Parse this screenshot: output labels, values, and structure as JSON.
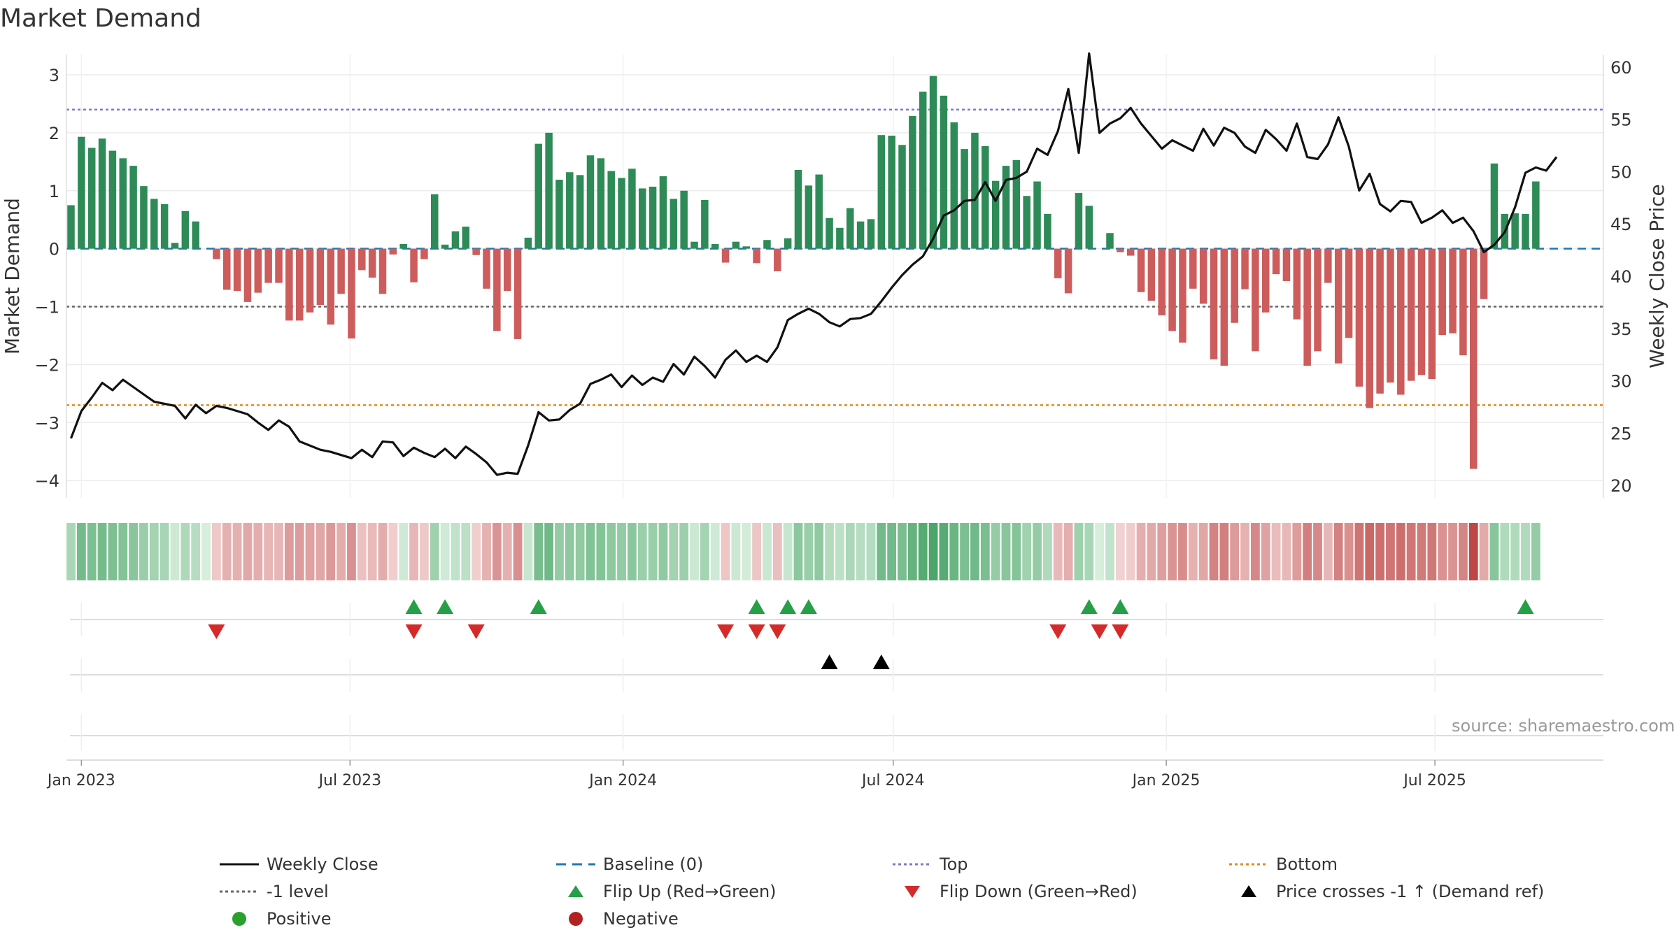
{
  "chart_data": {
    "type": "bar",
    "title": "Market Demand",
    "ylabel": "Market Demand",
    "y2label": "Weekly Close Price",
    "ylim": [
      -4.3,
      3.35
    ],
    "y2lim": [
      18.8,
      61.2
    ],
    "yticks": [
      3,
      2,
      1,
      0,
      -1,
      -2,
      -3,
      -4
    ],
    "yticklabels": [
      "3",
      "2",
      "1",
      "0",
      "−1",
      "−2",
      "−3",
      "−4"
    ],
    "y2ticks": [
      60,
      55,
      50,
      45,
      40,
      35,
      30,
      25,
      20
    ],
    "y2ticklabels": [
      "60",
      "55",
      "50",
      "45",
      "40",
      "35",
      "30",
      "25",
      "20"
    ],
    "x_start": "2022-12-25",
    "week_days": 7,
    "xticks": [
      {
        "label": "Jan 2023",
        "day": 7
      },
      {
        "label": "Jul 2023",
        "day": 188
      },
      {
        "label": "Jan 2024",
        "day": 372
      },
      {
        "label": "Jul 2024",
        "day": 554
      },
      {
        "label": "Jan 2025",
        "day": 738
      },
      {
        "label": "Jul 2025",
        "day": 919
      }
    ],
    "levels": {
      "top": 2.4,
      "minus_one": -1,
      "bottom": -2.7,
      "baseline": 0
    },
    "series": [
      {
        "name": "Market Demand",
        "values": [
          0.75,
          1.93,
          1.74,
          1.9,
          1.69,
          1.56,
          1.43,
          1.08,
          0.86,
          0.77,
          0.1,
          0.65,
          0.47,
          0.0,
          -0.18,
          -0.71,
          -0.73,
          -0.92,
          -0.76,
          -0.59,
          -0.59,
          -1.24,
          -1.24,
          -1.1,
          -0.97,
          -1.31,
          -0.78,
          -1.55,
          -0.37,
          -0.5,
          -0.78,
          -0.1,
          0.08,
          -0.58,
          -0.18,
          0.94,
          0.07,
          0.3,
          0.38,
          -0.11,
          -0.69,
          -1.42,
          -0.73,
          -1.56,
          0.19,
          1.81,
          2.0,
          1.19,
          1.32,
          1.27,
          1.61,
          1.56,
          1.34,
          1.22,
          1.38,
          1.04,
          1.07,
          1.25,
          0.86,
          1.0,
          0.12,
          0.84,
          0.08,
          -0.24,
          0.12,
          0.04,
          -0.25,
          0.15,
          -0.39,
          0.18,
          1.36,
          1.09,
          1.28,
          0.53,
          0.36,
          0.7,
          0.47,
          0.51,
          1.96,
          1.95,
          1.79,
          2.29,
          2.71,
          2.98,
          2.64,
          2.18,
          1.72,
          2.0,
          1.77,
          1.17,
          1.43,
          1.53,
          0.91,
          1.16,
          0.6,
          -0.51,
          -0.77,
          0.96,
          0.74,
          0.0,
          0.27,
          -0.06,
          -0.12,
          -0.75,
          -0.9,
          -1.15,
          -1.42,
          -1.62,
          -0.69,
          -0.95,
          -1.91,
          -2.02,
          -1.28,
          -0.7,
          -1.77,
          -1.1,
          -0.44,
          -0.56,
          -1.22,
          -2.02,
          -1.77,
          -0.59,
          -1.98,
          -1.54,
          -2.38,
          -2.75,
          -2.5,
          -2.31,
          -2.52,
          -2.28,
          -2.18,
          -2.25,
          -1.49,
          -1.46,
          -1.84,
          -3.8,
          -0.87,
          1.47,
          0.6,
          0.61,
          0.6,
          1.16
        ]
      },
      {
        "name": "Weekly Close",
        "values": [
          24.5,
          27.1,
          28.4,
          29.8,
          29.1,
          30.1,
          29.4,
          28.7,
          28.0,
          27.8,
          27.6,
          26.4,
          27.7,
          26.9,
          27.6,
          27.4,
          27.1,
          26.8,
          26.0,
          25.3,
          26.2,
          25.6,
          24.2,
          23.8,
          23.4,
          23.2,
          22.9,
          22.6,
          23.4,
          22.7,
          24.2,
          24.1,
          22.8,
          23.6,
          23.1,
          22.7,
          23.5,
          22.6,
          23.7,
          23.0,
          22.2,
          21.0,
          21.2,
          21.1,
          23.8,
          27.0,
          26.2,
          26.3,
          27.2,
          27.8,
          29.7,
          30.1,
          30.6,
          29.4,
          30.5,
          29.6,
          30.3,
          29.9,
          31.6,
          30.6,
          32.3,
          31.4,
          30.3,
          32.0,
          32.9,
          31.8,
          32.4,
          31.8,
          33.2,
          35.8,
          36.4,
          36.9,
          36.4,
          35.6,
          35.2,
          35.9,
          36.0,
          36.4,
          37.6,
          38.9,
          40.1,
          41.1,
          41.9,
          43.6,
          45.8,
          46.3,
          47.2,
          47.3,
          49.0,
          47.2,
          49.2,
          49.4,
          50.0,
          52.2,
          51.6,
          53.9,
          57.9,
          51.8,
          61.3,
          53.7,
          54.6,
          55.1,
          56.1,
          54.6,
          53.4,
          52.2,
          53.0,
          52.5,
          52.0,
          54.1,
          52.5,
          54.2,
          53.7,
          52.4,
          51.8,
          54.0,
          53.1,
          52.0,
          54.6,
          51.4,
          51.2,
          52.6,
          55.2,
          52.4,
          48.2,
          49.8,
          46.9,
          46.2,
          47.2,
          47.1,
          45.1,
          45.6,
          46.3,
          45.1,
          45.6,
          44.3,
          42.3,
          43.0,
          44.2,
          46.6,
          49.9,
          50.4,
          50.1,
          51.4
        ]
      }
    ],
    "flip_up_weeks": [
      33,
      36,
      45,
      66,
      69,
      71,
      98,
      101,
      140
    ],
    "flip_down_weeks": [
      14,
      33,
      39,
      63,
      66,
      68,
      95,
      99,
      101
    ],
    "price_cross_weeks": [
      73,
      78
    ],
    "legend": [
      "Weekly Close",
      "Baseline (0)",
      "Top",
      "Bottom",
      "-1 level",
      "Flip Up (Red→Green)",
      "Flip Down (Green→Red)",
      "Price crosses -1 ↑ (Demand ref)",
      "Positive",
      "Negative"
    ],
    "legend_position": "bottom",
    "colors": {
      "positive": "#2e8b57",
      "negative": "#cd5c5c",
      "close": "#111111",
      "baseline": "#1f77b4",
      "top": "#7b7bc8",
      "bottom": "#e08a1e",
      "minus_one": "#666666",
      "flip_up": "#26a047",
      "flip_down": "#d42a2a",
      "price_cross": "#000000",
      "positive_dot": "#2ca02c",
      "negative_dot": "#b22222"
    }
  },
  "source": "source: sharemaestro.com"
}
